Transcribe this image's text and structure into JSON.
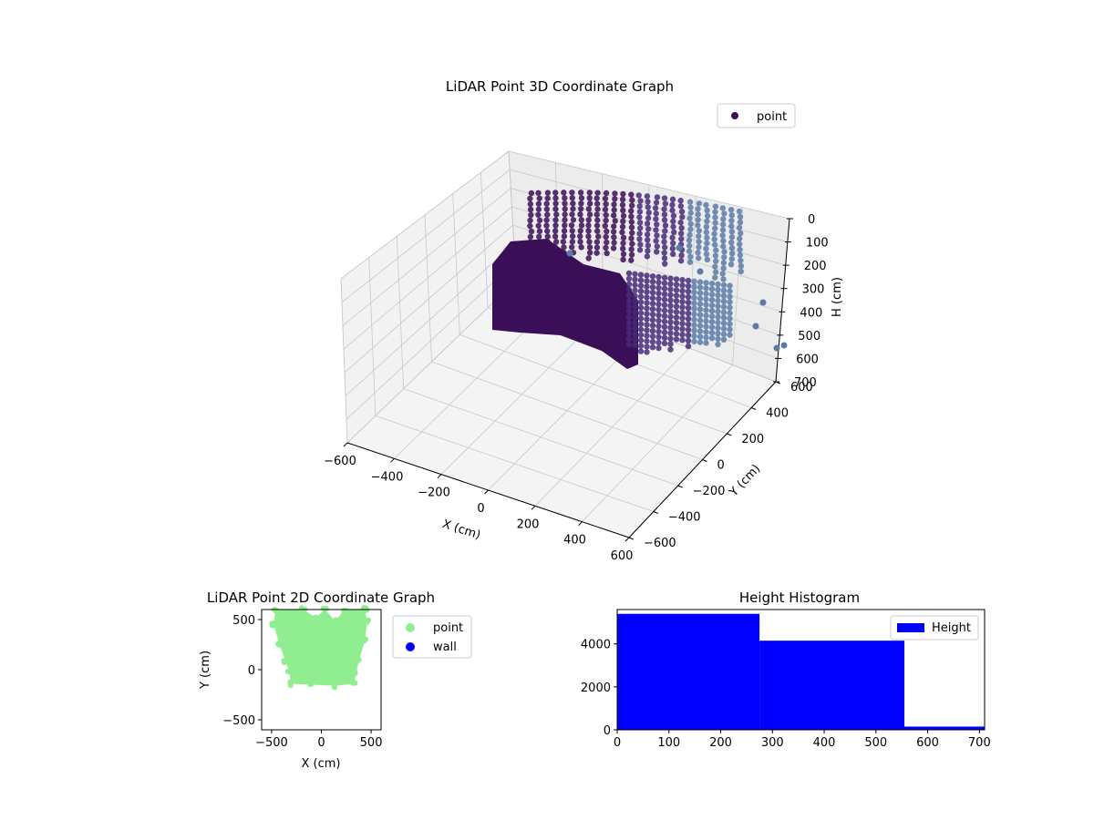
{
  "colors": {
    "point3d_dark": "#3b0f57",
    "point3d_mid": "#472a7a",
    "point3d_light": "#5a7ba8",
    "point2d": "#90ee90",
    "wall": "#0000ff",
    "histogram": "#0000ff",
    "pane": "#f2f2f2",
    "grid": "#c8c8c8"
  },
  "chart_data": [
    {
      "type": "scatter",
      "projection": "3d",
      "title": "LiDAR Point 3D Coordinate Graph",
      "xlabel": "X (cm)",
      "ylabel": "Y (cm)",
      "zlabel": "H (cm)",
      "xlim": [
        -600,
        600
      ],
      "ylim": [
        -600,
        600
      ],
      "zlim": [
        0,
        700
      ],
      "z_inverted": true,
      "x_ticks": [
        "−600",
        "−400",
        "−200",
        "0",
        "200",
        "400",
        "600"
      ],
      "y_ticks": [
        "−600",
        "−400",
        "−200",
        "0",
        "200",
        "400",
        "600"
      ],
      "z_ticks": [
        "0",
        "100",
        "200",
        "300",
        "400",
        "500",
        "600",
        "700"
      ],
      "grid": true,
      "legend": {
        "placement": "top-right",
        "entries": [
          {
            "label": "point",
            "color": "#3b0f57"
          }
        ]
      },
      "series": [
        {
          "name": "point",
          "description_points": "dense ring of scan columns around room perimeter"
        }
      ]
    },
    {
      "type": "scatter",
      "title": "LiDAR Point 2D Coordinate Graph",
      "xlabel": "X (cm)",
      "ylabel": "Y (cm)",
      "xlim": [
        -600,
        600
      ],
      "ylim": [
        -600,
        600
      ],
      "x_ticks": [
        "−500",
        "0",
        "500"
      ],
      "y_ticks": [
        "−500",
        "0",
        "500"
      ],
      "legend": {
        "placement": "outside-right",
        "entries": [
          {
            "label": "point",
            "color": "#90ee90"
          },
          {
            "label": "wall",
            "color": "#0000ff"
          }
        ]
      },
      "series": [
        {
          "name": "point",
          "x_range": [
            -480,
            460
          ],
          "y_range": [
            -150,
            600
          ]
        },
        {
          "name": "wall",
          "x": [],
          "y": []
        }
      ]
    },
    {
      "type": "bar",
      "subtype": "histogram",
      "title": "Height Histogram",
      "xlim": [
        0,
        710
      ],
      "ylim": [
        0,
        5600
      ],
      "x_ticks": [
        "0",
        "100",
        "200",
        "300",
        "400",
        "500",
        "600",
        "700"
      ],
      "y_ticks": [
        "0",
        "2000",
        "4000"
      ],
      "legend": {
        "placement": "top-right",
        "entries": [
          {
            "label": "Height",
            "color": "#0000ff"
          }
        ]
      },
      "bins": [
        {
          "start": 0,
          "end": 275,
          "count": 5400
        },
        {
          "start": 275,
          "end": 555,
          "count": 4150
        },
        {
          "start": 555,
          "end": 710,
          "count": 150
        }
      ]
    }
  ]
}
